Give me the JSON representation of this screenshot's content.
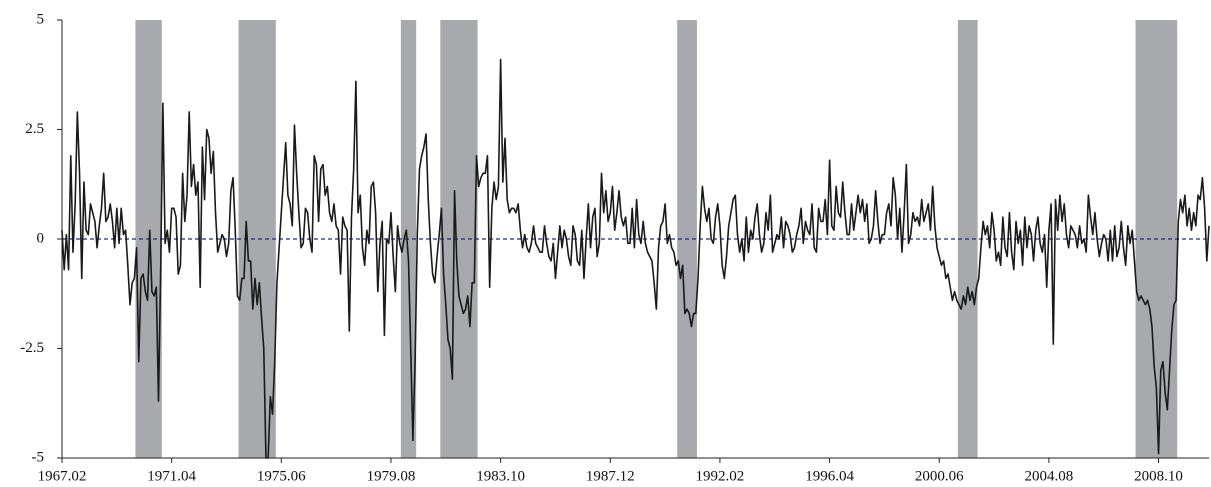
{
  "chart_data": {
    "type": "line",
    "categories": [
      "1967.02",
      null,
      null,
      null,
      null,
      null,
      null,
      null,
      null,
      null,
      null,
      null,
      null,
      null,
      null,
      null,
      null,
      null,
      null,
      null,
      null,
      null,
      null,
      null,
      null,
      null,
      null,
      null,
      null,
      null,
      null,
      null,
      null,
      null,
      null,
      null,
      null,
      null,
      null,
      null,
      null,
      null,
      null,
      null,
      null,
      null,
      null,
      null,
      null,
      null,
      "1971.04",
      null,
      null,
      null,
      null,
      null,
      null,
      null,
      null,
      null,
      null,
      null,
      null,
      null,
      null,
      null,
      null,
      null,
      null,
      null,
      null,
      null,
      null,
      null,
      null,
      null,
      null,
      null,
      null,
      null,
      null,
      null,
      null,
      null,
      null,
      null,
      null,
      null,
      null,
      null,
      null,
      null,
      null,
      null,
      null,
      null,
      null,
      null,
      null,
      null,
      "1975.06",
      null,
      null,
      null,
      null,
      null,
      null,
      null,
      null,
      null,
      null,
      null,
      null,
      null,
      null,
      null,
      null,
      null,
      null,
      null,
      null,
      null,
      null,
      null,
      null,
      null,
      null,
      null,
      null,
      null,
      null,
      null,
      null,
      null,
      null,
      null,
      null,
      null,
      null,
      null,
      null,
      null,
      null,
      null,
      null,
      null,
      null,
      null,
      null,
      null,
      "1979.08",
      null,
      null,
      null,
      null,
      null,
      null,
      null,
      null,
      null,
      null,
      null,
      null,
      null,
      null,
      null,
      null,
      null,
      null,
      null,
      null,
      null,
      null,
      null,
      null,
      null,
      null,
      null,
      null,
      null,
      null,
      null,
      null,
      null,
      null,
      null,
      null,
      null,
      null,
      null,
      null,
      null,
      null,
      null,
      null,
      null,
      null,
      null,
      null,
      null,
      "1983.10",
      null,
      null,
      null,
      null,
      null,
      null,
      null,
      null,
      null,
      null,
      null,
      null,
      null,
      null,
      null,
      null,
      null,
      null,
      null,
      null,
      null,
      null,
      null,
      null,
      null,
      null,
      null,
      null,
      null,
      null,
      null,
      null,
      null,
      null,
      null,
      null,
      null,
      null,
      null,
      null,
      null,
      null,
      null,
      null,
      null,
      null,
      null,
      null,
      null,
      "1987.12",
      null,
      null,
      null,
      null,
      null,
      null,
      null,
      null,
      null,
      null,
      null,
      null,
      null,
      null,
      null,
      null,
      null,
      null,
      null,
      null,
      null,
      null,
      null,
      null,
      null,
      null,
      null,
      null,
      null,
      null,
      null,
      null,
      null,
      null,
      null,
      null,
      null,
      null,
      null,
      null,
      null,
      null,
      null,
      null,
      null,
      null,
      null,
      null,
      null,
      "1992.02",
      null,
      null,
      null,
      null,
      null,
      null,
      null,
      null,
      null,
      null,
      null,
      null,
      null,
      null,
      null,
      null,
      null,
      null,
      null,
      null,
      null,
      null,
      null,
      null,
      null,
      null,
      null,
      null,
      null,
      null,
      null,
      null,
      null,
      null,
      null,
      null,
      null,
      null,
      null,
      null,
      null,
      null,
      null,
      null,
      null,
      null,
      null,
      null,
      null,
      "1996.04",
      null,
      null,
      null,
      null,
      null,
      null,
      null,
      null,
      null,
      null,
      null,
      null,
      null,
      null,
      null,
      null,
      null,
      null,
      null,
      null,
      null,
      null,
      null,
      null,
      null,
      null,
      null,
      null,
      null,
      null,
      null,
      null,
      null,
      null,
      null,
      null,
      null,
      null,
      null,
      null,
      null,
      null,
      null,
      null,
      null,
      null,
      null,
      null,
      null,
      "2000.06",
      null,
      null,
      null,
      null,
      null,
      null,
      null,
      null,
      null,
      null,
      null,
      null,
      null,
      null,
      null,
      null,
      null,
      null,
      null,
      null,
      null,
      null,
      null,
      null,
      null,
      null,
      null,
      null,
      null,
      null,
      null,
      null,
      null,
      null,
      null,
      null,
      null,
      null,
      null,
      null,
      null,
      null,
      null,
      null,
      null,
      null,
      null,
      null,
      null,
      "2004.08",
      null,
      null,
      null,
      null,
      null,
      null,
      null,
      null,
      null,
      null,
      null,
      null,
      null,
      null,
      null,
      null,
      null,
      null,
      null,
      null,
      null,
      null,
      null,
      null,
      null,
      null,
      null,
      null,
      null,
      null,
      null,
      null,
      null,
      null,
      null,
      null,
      null,
      null,
      null,
      null,
      null,
      null,
      null,
      null,
      null,
      null,
      null,
      null,
      null,
      "2008.10",
      null,
      null,
      null,
      null,
      null,
      null,
      null,
      null,
      null,
      null,
      null,
      null,
      null,
      null,
      null,
      null,
      null,
      null,
      null,
      null,
      null,
      null,
      null
    ],
    "values": [
      0.2,
      -0.7,
      0.1,
      -0.7,
      1.9,
      -0.3,
      0.8,
      2.9,
      1.5,
      -0.9,
      1.3,
      0.2,
      0.1,
      0.8,
      0.6,
      0.4,
      -0.2,
      0.3,
      0.7,
      1.5,
      0.4,
      0.5,
      0.8,
      0.4,
      -0.2,
      0.7,
      -0.1,
      0.7,
      0.1,
      0.2,
      -0.6,
      -1.5,
      -1.0,
      -0.9,
      -0.2,
      -2.8,
      -0.9,
      -0.8,
      -1.2,
      -1.4,
      0.2,
      -1.2,
      -1.3,
      -1.1,
      -3.7,
      -0.7,
      3.1,
      -0.1,
      0.2,
      -0.3,
      0.7,
      0.7,
      0.5,
      -0.8,
      -0.6,
      1.5,
      0.4,
      1.0,
      2.9,
      1.2,
      1.7,
      1.0,
      1.3,
      -1.1,
      2.1,
      0.9,
      2.5,
      2.3,
      1.5,
      2.0,
      0.6,
      -0.3,
      -0.1,
      0.1,
      0.0,
      -0.4,
      -0.1,
      1.1,
      1.4,
      0.2,
      -1.3,
      -1.4,
      -0.9,
      -0.9,
      0.4,
      -0.5,
      -0.5,
      -1.6,
      -0.9,
      -1.5,
      -1.0,
      -1.8,
      -2.5,
      -5.0,
      -5.0,
      -3.6,
      -4.0,
      -2.8,
      -1.0,
      -0.2,
      0.6,
      1.4,
      2.2,
      1.0,
      0.8,
      0.3,
      2.6,
      1.5,
      0.6,
      -0.2,
      -0.1,
      0.7,
      0.6,
      0.0,
      -0.3,
      1.9,
      1.7,
      0.4,
      1.6,
      1.7,
      1.0,
      1.2,
      0.6,
      0.4,
      0.8,
      0.3,
      0.2,
      -0.8,
      0.5,
      0.3,
      0.2,
      -2.1,
      0.5,
      1.6,
      3.6,
      0.6,
      1.0,
      -0.2,
      -0.6,
      0.2,
      -0.1,
      1.2,
      1.3,
      0.6,
      -1.2,
      -0.1,
      0.4,
      -2.2,
      0.0,
      -0.1,
      0.6,
      -0.4,
      -1.2,
      0.3,
      -0.1,
      -0.3,
      0.0,
      0.2,
      -0.5,
      -2.5,
      -4.6,
      -2.8,
      0.1,
      1.6,
      1.9,
      2.1,
      2.4,
      0.9,
      -0.1,
      -0.8,
      -1.0,
      -0.4,
      0.1,
      0.7,
      -0.8,
      -1.5,
      -2.3,
      -2.5,
      -3.2,
      1.1,
      -0.5,
      -1.3,
      -1.5,
      -1.7,
      -1.6,
      -1.3,
      -2.0,
      -1.0,
      -1.0,
      1.9,
      1.2,
      1.4,
      1.5,
      1.5,
      1.9,
      -1.1,
      0.7,
      1.3,
      0.9,
      1.2,
      4.1,
      1.3,
      2.3,
      0.9,
      0.6,
      0.7,
      0.7,
      0.6,
      0.8,
      0.2,
      -0.2,
      0.1,
      -0.2,
      -0.3,
      -0.1,
      0.3,
      -0.1,
      -0.2,
      -0.3,
      -0.3,
      0.3,
      -0.1,
      -0.4,
      -0.5,
      -0.1,
      -0.9,
      -0.3,
      0.3,
      -0.2,
      0.2,
      0.0,
      -0.4,
      -0.6,
      0.3,
      0.1,
      -0.5,
      -0.6,
      0.2,
      -0.9,
      0.0,
      0.8,
      -0.2,
      0.5,
      0.7,
      -0.4,
      -0.1,
      1.5,
      0.6,
      1.1,
      0.4,
      0.6,
      1.2,
      0.2,
      0.6,
      1.1,
      0.5,
      0.3,
      0.5,
      -0.1,
      -0.1,
      0.7,
      -0.2,
      0.9,
      0.1,
      -0.1,
      0.4,
      -0.1,
      -0.3,
      -0.4,
      -0.5,
      -1.0,
      -1.6,
      -0.2,
      0.3,
      0.4,
      0.8,
      -0.1,
      0.1,
      -0.2,
      -0.3,
      -0.6,
      -0.5,
      -0.9,
      -0.6,
      -1.7,
      -1.6,
      -1.7,
      -2.0,
      -1.7,
      -1.7,
      -0.9,
      0.3,
      1.2,
      0.7,
      0.4,
      0.7,
      0.0,
      -0.1,
      0.5,
      0.8,
      0.3,
      -0.6,
      -0.9,
      -0.4,
      0.3,
      0.6,
      0.9,
      1.0,
      0.1,
      -0.3,
      0.0,
      -0.5,
      0.5,
      -0.3,
      0.2,
      0.0,
      0.5,
      0.8,
      0.1,
      -0.3,
      -0.1,
      0.6,
      0.2,
      1.0,
      -0.3,
      -0.1,
      0.1,
      0.0,
      0.5,
      -0.2,
      0.4,
      0.3,
      0.1,
      -0.3,
      -0.2,
      0.1,
      0.3,
      0.7,
      -0.1,
      0.4,
      0.2,
      0.1,
      0.8,
      -0.2,
      -0.3,
      0.7,
      0.4,
      0.4,
      0.9,
      0.1,
      1.8,
      0.3,
      0.2,
      1.2,
      0.6,
      0.5,
      1.3,
      0.6,
      0.1,
      0.1,
      0.8,
      0.2,
      0.6,
      1.0,
      0.6,
      0.9,
      0.4,
      0.8,
      -0.1,
      0.0,
      0.3,
      1.1,
      0.4,
      -0.1,
      0.1,
      0.1,
      0.6,
      0.8,
      0.3,
      1.4,
      1.0,
      0.0,
      0.7,
      -0.3,
      0.6,
      1.7,
      -0.1,
      0.1,
      0.6,
      0.4,
      0.5,
      0.3,
      0.9,
      0.4,
      0.6,
      0.8,
      0.2,
      1.2,
      0.3,
      -0.2,
      -0.4,
      -0.6,
      -0.5,
      -0.9,
      -0.8,
      -1.1,
      -1.4,
      -1.2,
      -1.4,
      -1.5,
      -1.6,
      -1.3,
      -1.5,
      -1.1,
      -1.4,
      -1.2,
      -1.5,
      -1.1,
      -0.9,
      -0.2,
      0.4,
      0.1,
      0.3,
      -0.2,
      0.6,
      0.2,
      -0.5,
      -0.3,
      -0.6,
      0.5,
      -0.2,
      -0.4,
      0.6,
      -0.3,
      -0.7,
      0.4,
      -0.1,
      0.2,
      -0.6,
      0.5,
      -0.2,
      0.3,
      0.1,
      -0.5,
      0.2,
      0.5,
      -0.1,
      -0.3,
      0.1,
      -1.1,
      0.2,
      0.8,
      -2.4,
      0.9,
      0.2,
      1.0,
      0.4,
      0.8,
      0.1,
      -0.2,
      0.3,
      0.2,
      0.1,
      -0.2,
      0.3,
      -0.1,
      0.0,
      -0.3,
      1.0,
      0.5,
      0.1,
      0.6,
      0.0,
      -0.4,
      -0.1,
      0.1,
      0.0,
      -0.5,
      0.2,
      -0.5,
      0.3,
      -0.4,
      -0.2,
      0.4,
      -0.2,
      -0.6,
      0.3,
      -0.1,
      0.2,
      -0.5,
      -1.2,
      -1.4,
      -1.3,
      -1.4,
      -1.5,
      -1.4,
      -1.6,
      -2.0,
      -2.9,
      -3.4,
      -4.9,
      -3.0,
      -2.8,
      -3.5,
      -3.9,
      -3.0,
      -2.1,
      -1.5,
      -1.4,
      0.4,
      0.9,
      0.6,
      1.0,
      0.3,
      0.7,
      0.2,
      0.6,
      0.3,
      1.0,
      0.9,
      1.4,
      0.7,
      -0.5,
      0.3
    ],
    "color": "#1a1a1a",
    "shaded_periods": [
      {
        "start": "1969.12",
        "end": "1970.11"
      },
      {
        "start": "1973.11",
        "end": "1975.03"
      },
      {
        "start": "1980.01",
        "end": "1980.07"
      },
      {
        "start": "1981.07",
        "end": "1982.11"
      },
      {
        "start": "1990.07",
        "end": "1991.03"
      },
      {
        "start": "2001.03",
        "end": "2001.11"
      },
      {
        "start": "2007.12",
        "end": "2009.06"
      }
    ],
    "shade_color": "#a7a9ac",
    "zero_line": true,
    "zero_line_color": "#1f2a8c",
    "ylim": [
      -5,
      5
    ],
    "yticks": [
      5,
      2.5,
      0,
      -2.5,
      -5
    ]
  }
}
